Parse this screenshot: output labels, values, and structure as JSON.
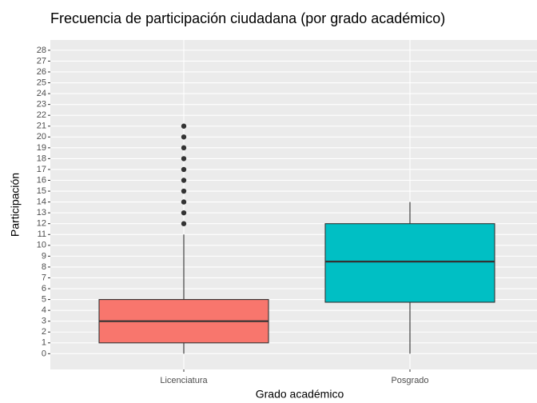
{
  "chart_data": {
    "type": "boxplot",
    "title": "Frecuencia de participación ciudadana (por grado académico)",
    "xlabel": "Grado académico",
    "ylabel": "Participación",
    "categories": [
      "Licenciatura",
      "Posgrado"
    ],
    "boxes": [
      {
        "min": 0,
        "q1": 1,
        "median": 3,
        "q3": 5,
        "max": 11,
        "outliers": [
          12,
          13,
          14,
          15,
          16,
          17,
          18,
          19,
          20,
          21
        ],
        "color": "#F8766D"
      },
      {
        "min": 0,
        "q1": 4.75,
        "median": 8.5,
        "q3": 12,
        "max": 14,
        "outliers": [],
        "color": "#00BFC4"
      }
    ],
    "ylim": [
      -1.45,
      28.95
    ],
    "yticks": [
      0,
      1,
      2,
      3,
      4,
      5,
      6,
      7,
      8,
      9,
      10,
      11,
      12,
      13,
      14,
      15,
      16,
      17,
      18,
      19,
      20,
      21,
      22,
      23,
      24,
      25,
      26,
      27,
      28
    ],
    "grid": true
  }
}
